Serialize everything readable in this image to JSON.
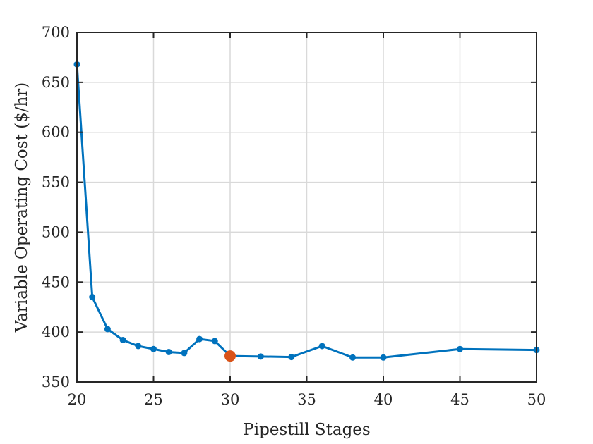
{
  "chart_data": {
    "type": "line",
    "xlabel": "Pipestill Stages",
    "ylabel": "Variable Operating Cost ($/hr)",
    "xlim": [
      20,
      50
    ],
    "ylim": [
      350,
      700
    ],
    "xticks": [
      20,
      25,
      30,
      35,
      40,
      45,
      50
    ],
    "yticks": [
      350,
      400,
      450,
      500,
      550,
      600,
      650,
      700
    ],
    "grid": true,
    "series": [
      {
        "color": "#0072BD",
        "x": [
          20,
          21,
          22,
          23,
          24,
          25,
          26,
          27,
          28,
          29,
          30,
          32,
          34,
          36,
          38,
          40,
          45,
          50
        ],
        "y": [
          668,
          435,
          403,
          392,
          386,
          383,
          380,
          379,
          393,
          391,
          376,
          375.5,
          375,
          386,
          374.5,
          374.5,
          383,
          382
        ]
      }
    ],
    "highlight": {
      "x": 30,
      "y": 376,
      "color": "#D95319"
    }
  }
}
